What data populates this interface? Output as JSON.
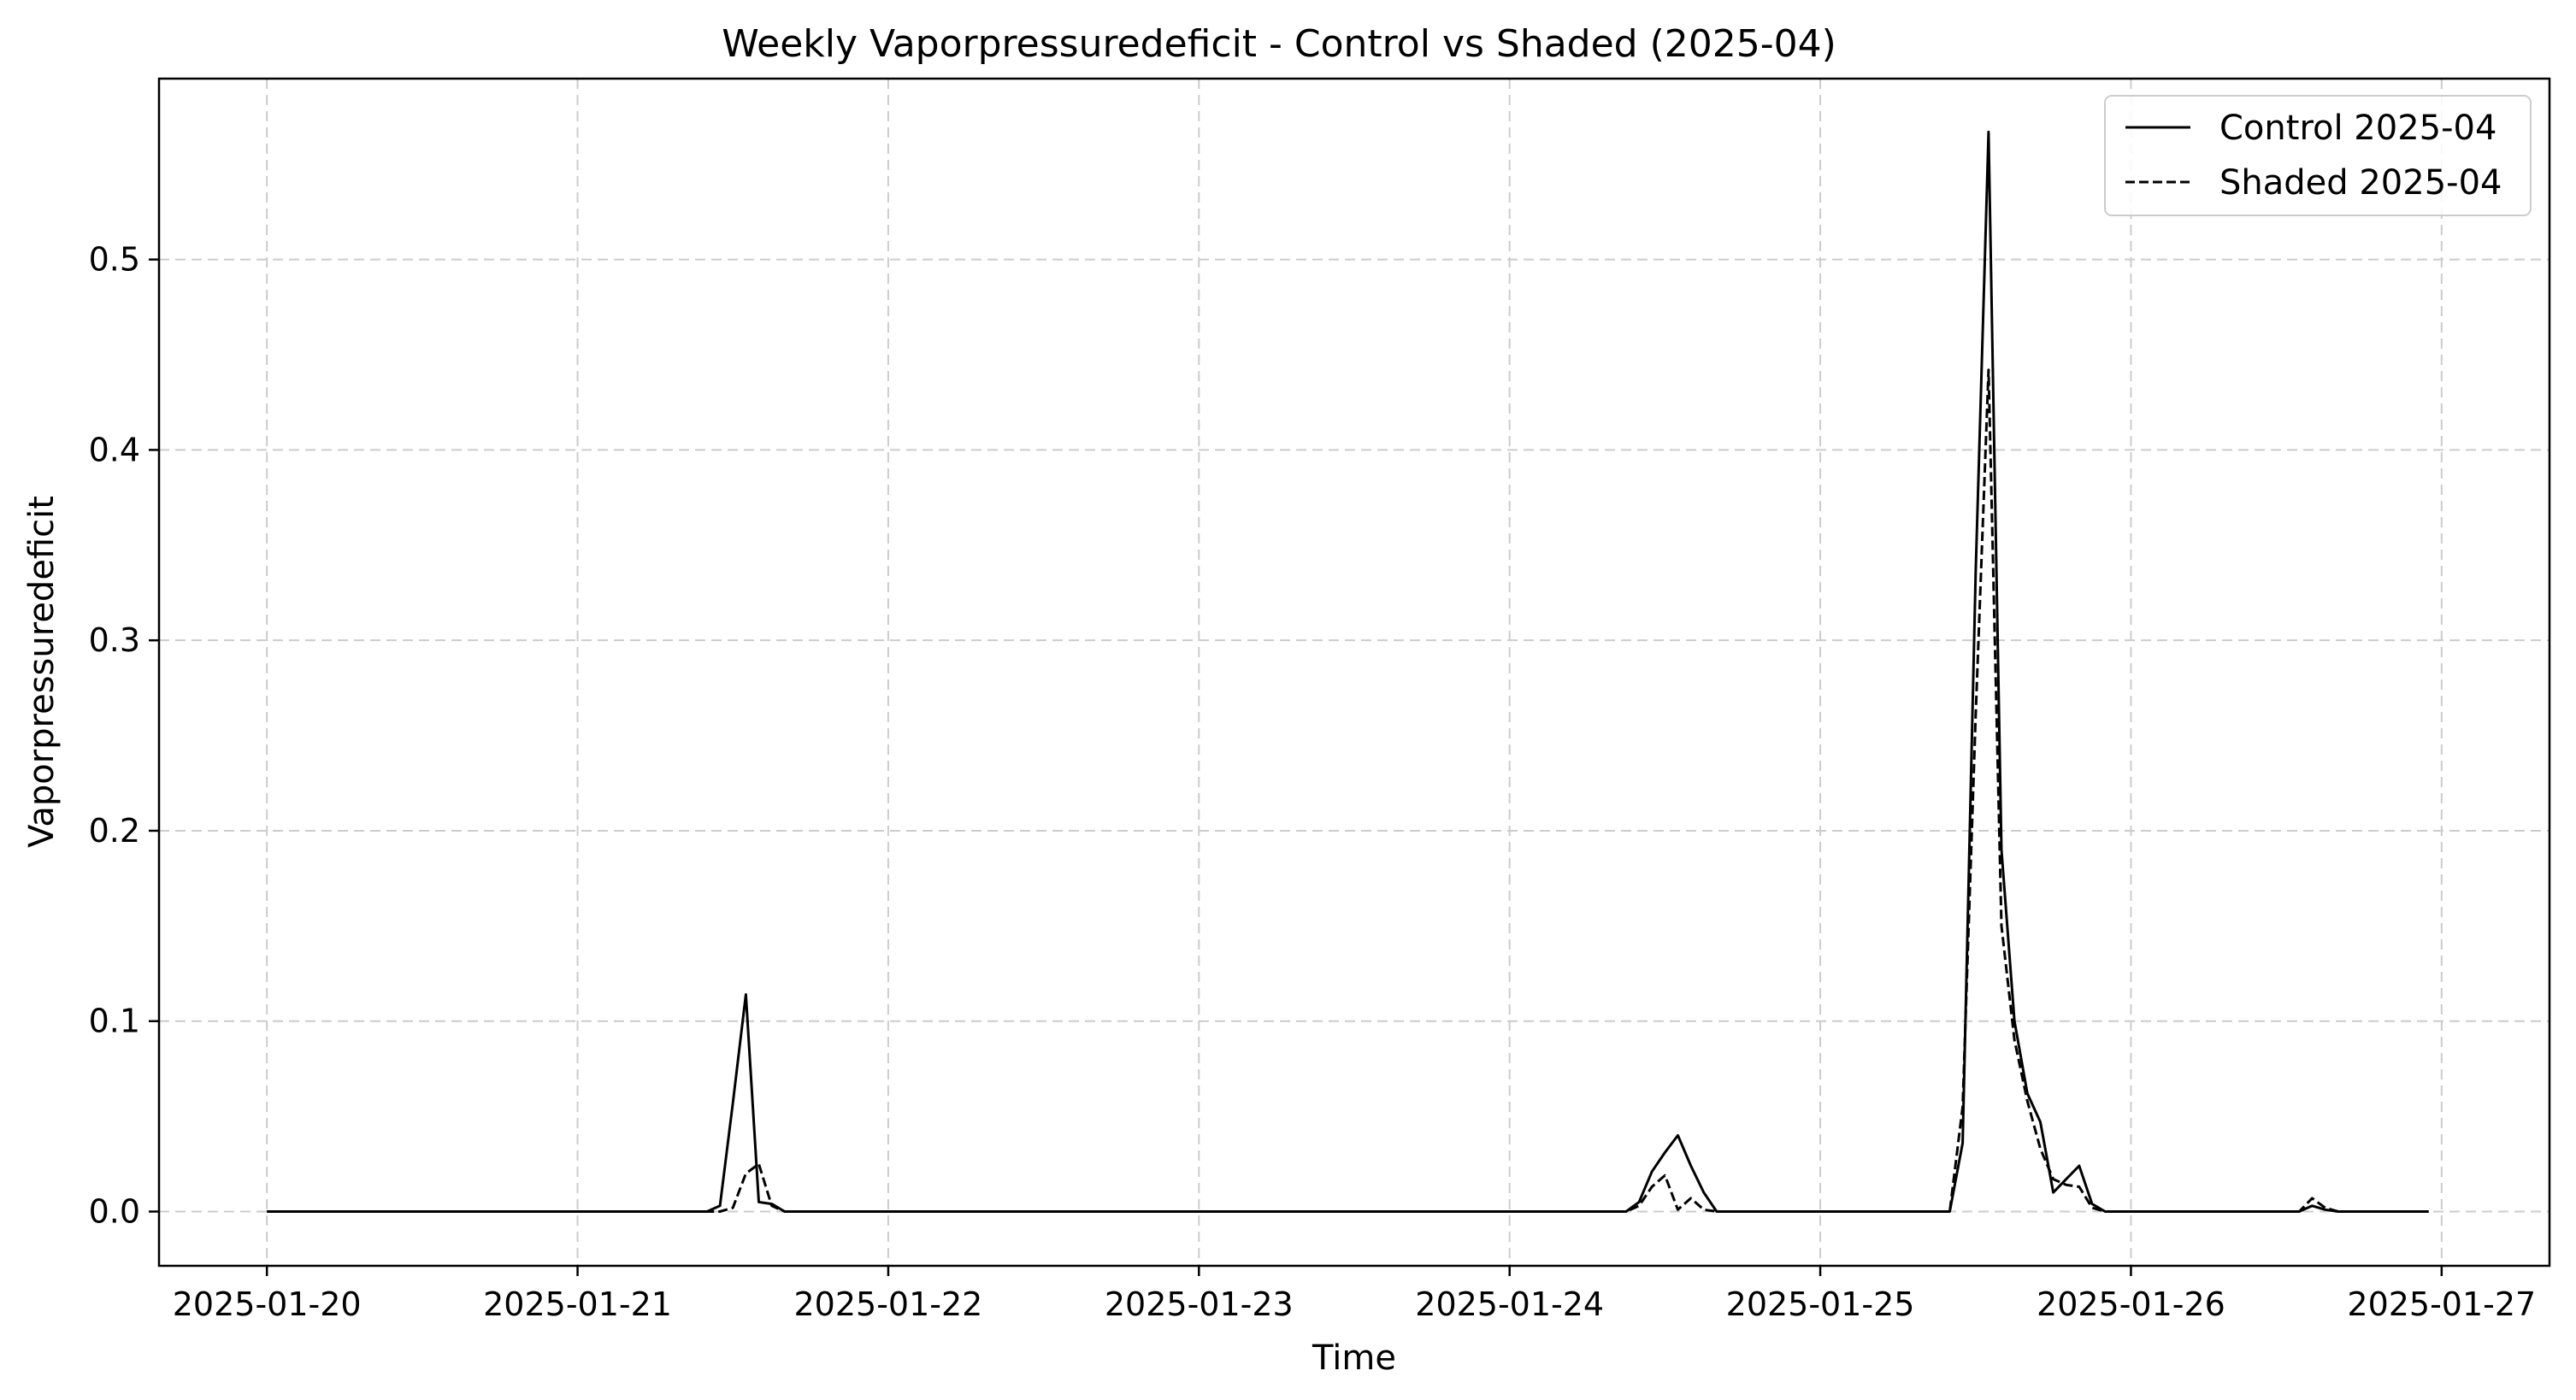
{
  "chart_data": {
    "type": "line",
    "title": "Weekly Vaporpressuredeficit - Control vs Shaded (2025-04)",
    "xlabel": "Time",
    "ylabel": "Vaporpressuredeficit",
    "xlim": [
      "2025-01-19T15:40",
      "2025-01-27T08:20"
    ],
    "ylim": [
      -0.0285,
      0.595
    ],
    "x_ticks": [
      "2025-01-20",
      "2025-01-21",
      "2025-01-22",
      "2025-01-23",
      "2025-01-24",
      "2025-01-25",
      "2025-01-26",
      "2025-01-27"
    ],
    "y_ticks": [
      0.0,
      0.1,
      0.2,
      0.3,
      0.4,
      0.5
    ],
    "y_tick_labels": [
      "0.0",
      "0.1",
      "0.2",
      "0.3",
      "0.4",
      "0.5"
    ],
    "grid": true,
    "legend_position": "top-right",
    "series": [
      {
        "name": "Control 2025-04",
        "style": "solid",
        "color": "#000000",
        "points": [
          [
            "2025-01-20T00:00",
            0
          ],
          [
            "2025-01-21T10:00",
            0
          ],
          [
            "2025-01-21T11:00",
            0.003
          ],
          [
            "2025-01-21T12:00",
            0.057
          ],
          [
            "2025-01-21T13:00",
            0.114
          ],
          [
            "2025-01-21T14:00",
            0.005
          ],
          [
            "2025-01-21T15:00",
            0.004
          ],
          [
            "2025-01-21T16:00",
            0
          ],
          [
            "2025-01-24T09:00",
            0
          ],
          [
            "2025-01-24T10:00",
            0.005
          ],
          [
            "2025-01-24T11:00",
            0.021
          ],
          [
            "2025-01-24T12:00",
            0.031
          ],
          [
            "2025-01-24T13:00",
            0.04
          ],
          [
            "2025-01-24T14:00",
            0.024
          ],
          [
            "2025-01-24T15:00",
            0.01
          ],
          [
            "2025-01-24T16:00",
            0
          ],
          [
            "2025-01-25T10:00",
            0
          ],
          [
            "2025-01-25T11:00",
            0.036
          ],
          [
            "2025-01-25T12:00",
            0.335
          ],
          [
            "2025-01-25T13:00",
            0.567
          ],
          [
            "2025-01-25T14:00",
            0.19
          ],
          [
            "2025-01-25T15:00",
            0.1
          ],
          [
            "2025-01-25T16:00",
            0.062
          ],
          [
            "2025-01-25T17:00",
            0.047
          ],
          [
            "2025-01-25T18:00",
            0.01
          ],
          [
            "2025-01-25T19:00",
            0.017
          ],
          [
            "2025-01-25T20:00",
            0.024
          ],
          [
            "2025-01-25T21:00",
            0.004
          ],
          [
            "2025-01-25T22:00",
            0
          ],
          [
            "2025-01-26T13:00",
            0
          ],
          [
            "2025-01-26T14:00",
            0.003
          ],
          [
            "2025-01-26T15:00",
            0.001
          ],
          [
            "2025-01-26T16:00",
            0
          ],
          [
            "2025-01-26T23:00",
            0
          ]
        ]
      },
      {
        "name": "Shaded 2025-04",
        "style": "dashed",
        "color": "#000000",
        "points": [
          [
            "2025-01-20T00:00",
            0
          ],
          [
            "2025-01-21T11:00",
            0
          ],
          [
            "2025-01-21T12:00",
            0.002
          ],
          [
            "2025-01-21T13:00",
            0.02
          ],
          [
            "2025-01-21T14:00",
            0.025
          ],
          [
            "2025-01-21T15:00",
            0.003
          ],
          [
            "2025-01-21T16:00",
            0
          ],
          [
            "2025-01-24T09:00",
            0
          ],
          [
            "2025-01-24T10:00",
            0.003
          ],
          [
            "2025-01-24T11:00",
            0.013
          ],
          [
            "2025-01-24T12:00",
            0.019
          ],
          [
            "2025-01-24T13:00",
            0.001
          ],
          [
            "2025-01-24T14:00",
            0.007
          ],
          [
            "2025-01-24T15:00",
            0.001
          ],
          [
            "2025-01-24T16:00",
            0
          ],
          [
            "2025-01-25T10:00",
            0
          ],
          [
            "2025-01-25T11:00",
            0.055
          ],
          [
            "2025-01-25T12:00",
            0.26
          ],
          [
            "2025-01-25T13:00",
            0.442
          ],
          [
            "2025-01-25T14:00",
            0.15
          ],
          [
            "2025-01-25T15:00",
            0.09
          ],
          [
            "2025-01-25T16:00",
            0.058
          ],
          [
            "2025-01-25T17:00",
            0.033
          ],
          [
            "2025-01-25T18:00",
            0.017
          ],
          [
            "2025-01-25T19:00",
            0.014
          ],
          [
            "2025-01-25T20:00",
            0.013
          ],
          [
            "2025-01-25T21:00",
            0.002
          ],
          [
            "2025-01-25T22:00",
            0
          ],
          [
            "2025-01-26T13:00",
            0
          ],
          [
            "2025-01-26T14:00",
            0.007
          ],
          [
            "2025-01-26T15:00",
            0.002
          ],
          [
            "2025-01-26T16:00",
            0
          ],
          [
            "2025-01-26T23:00",
            0
          ]
        ]
      }
    ]
  }
}
